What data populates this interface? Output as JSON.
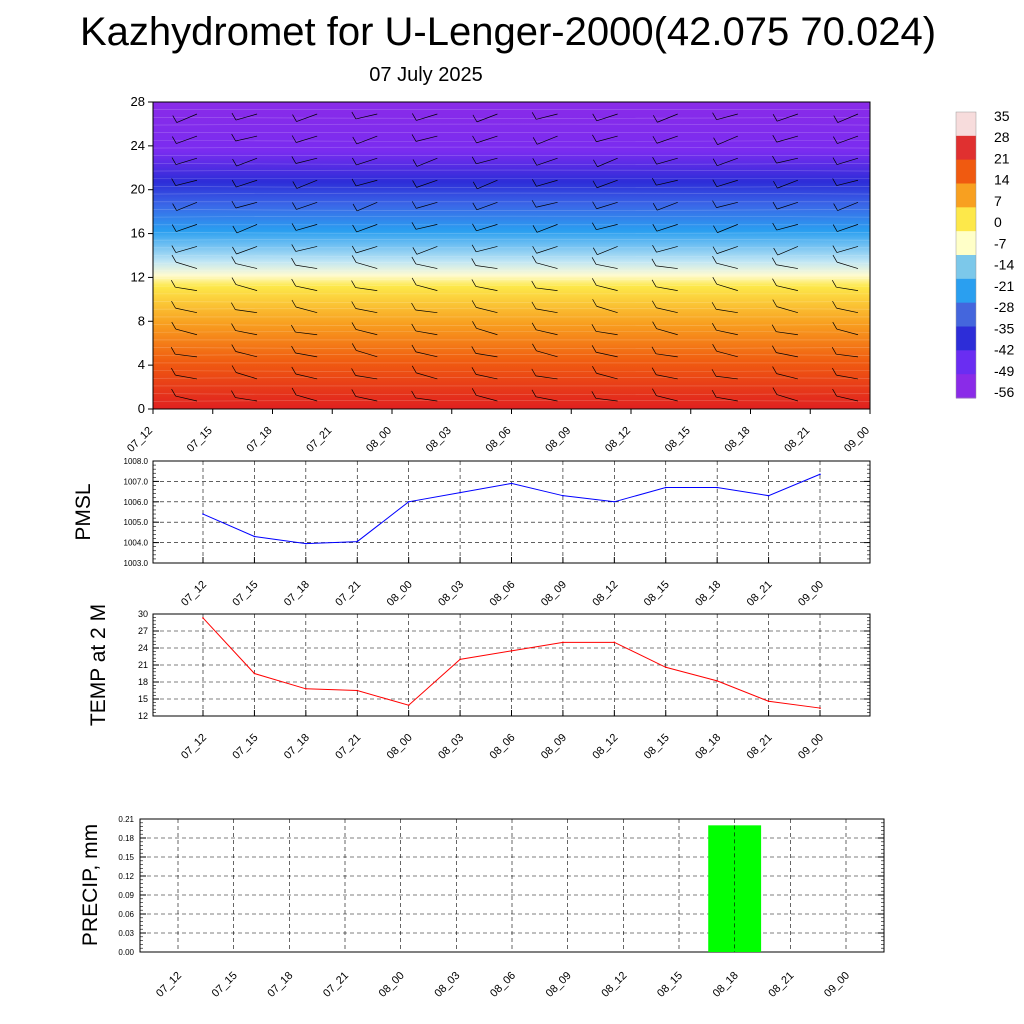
{
  "title": "Kazhydromet for U-Lenger-2000(42.075 70.024)",
  "subtitle": "07 July 2025",
  "time_labels": [
    "07_12",
    "07_15",
    "07_18",
    "07_21",
    "08_00",
    "08_03",
    "08_06",
    "08_09",
    "08_12",
    "08_15",
    "08_18",
    "08_21",
    "09_00"
  ],
  "colorbar": {
    "labels": [
      "35",
      "28",
      "21",
      "14",
      "7",
      "0",
      "-7",
      "-14",
      "-21",
      "-28",
      "-35",
      "-42",
      "-49",
      "-56"
    ],
    "colors": [
      "#f7dcdc",
      "#e03030",
      "#f05a10",
      "#f8a020",
      "#fde84a",
      "#ffffc8",
      "#7cc8ea",
      "#2a9ff0",
      "#4466dd",
      "#2d2dd8",
      "#6a2df2",
      "#8a2be8"
    ]
  },
  "chart_data": [
    {
      "type": "heatmap",
      "ylim": [
        0,
        28
      ],
      "yticks": [
        "0",
        "4",
        "8",
        "12",
        "16",
        "20",
        "24",
        "28"
      ],
      "x": [
        "07_12",
        "07_15",
        "07_18",
        "07_21",
        "08_00",
        "08_03",
        "08_06",
        "08_09",
        "08_12",
        "08_15",
        "08_18",
        "08_21",
        "09_00"
      ],
      "levels_km": [
        0,
        4,
        8,
        12,
        16,
        20,
        24,
        28
      ],
      "temperature_profile_c": [
        28,
        18,
        6,
        -8,
        -30,
        -55,
        -60,
        -60
      ],
      "has_wind_barbs": true
    },
    {
      "type": "line",
      "ylabel": "PMSL",
      "ylim": [
        1003,
        1008
      ],
      "yticks": [
        "1003.0",
        "1004.0",
        "1005.0",
        "1006.0",
        "1007.0",
        "1008.0"
      ],
      "x": [
        "07_12",
        "07_15",
        "07_18",
        "07_21",
        "08_00",
        "08_03",
        "08_06",
        "08_09",
        "08_12",
        "08_15",
        "08_18",
        "08_21",
        "09_00"
      ],
      "values": [
        1005.4,
        1004.3,
        1003.95,
        1004.05,
        1006.0,
        1006.45,
        1006.9,
        1006.3,
        1006.0,
        1006.7,
        1006.7,
        1006.3,
        1007.35
      ],
      "color": "#0000ff",
      "grid": true
    },
    {
      "type": "line",
      "ylabel": "TEMP at 2 M",
      "ylim": [
        12,
        30
      ],
      "yticks": [
        "12",
        "15",
        "18",
        "21",
        "24",
        "27",
        "30"
      ],
      "x": [
        "07_12",
        "07_15",
        "07_18",
        "07_21",
        "08_00",
        "08_03",
        "08_06",
        "08_09",
        "08_12",
        "08_15",
        "08_18",
        "08_21",
        "09_00"
      ],
      "values": [
        29.3,
        19.5,
        16.8,
        16.5,
        13.9,
        22.0,
        23.5,
        25.0,
        25.0,
        20.6,
        18.2,
        14.6,
        13.4
      ],
      "color": "#ff0000",
      "grid": true
    },
    {
      "type": "bar",
      "ylabel": "PRECIP, mm",
      "ylim": [
        0,
        0.21
      ],
      "yticks": [
        "0.00",
        "0.03",
        "0.06",
        "0.09",
        "0.12",
        "0.15",
        "0.18",
        "0.21"
      ],
      "categories": [
        "07_12",
        "07_15",
        "07_18",
        "07_21",
        "08_00",
        "08_03",
        "08_06",
        "08_09",
        "08_12",
        "08_15",
        "08_18",
        "08_21",
        "09_00"
      ],
      "values": [
        0,
        0,
        0,
        0,
        0,
        0,
        0,
        0,
        0,
        0,
        0.2,
        0,
        0
      ],
      "color": "#00ff00",
      "grid": true
    }
  ]
}
